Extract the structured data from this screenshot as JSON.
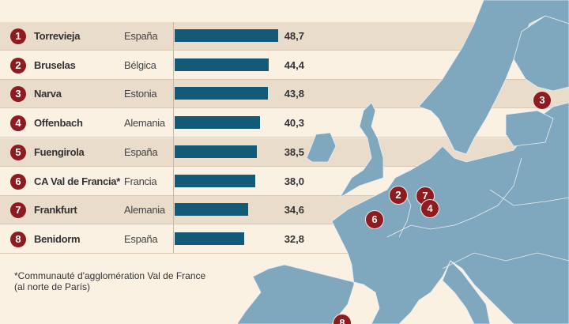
{
  "chart_data": {
    "type": "bar",
    "orientation": "horizontal",
    "categories": [
      "Torrevieja",
      "Bruselas",
      "Narva",
      "Offenbach",
      "Fuengirola",
      "CA Val de Francia*",
      "Frankfurt",
      "Benidorm"
    ],
    "ranks": [
      "1",
      "2",
      "3",
      "4",
      "5",
      "6",
      "7",
      "8"
    ],
    "countries": [
      "España",
      "Bélgica",
      "Estonia",
      "Alemania",
      "España",
      "Francia",
      "Alemania",
      "España"
    ],
    "values": [
      48.7,
      44.4,
      43.8,
      40.3,
      38.5,
      38.0,
      34.6,
      32.8
    ],
    "value_labels": [
      "48,7",
      "44,4",
      "43,8",
      "40,3",
      "38,5",
      "38,0",
      "34,6",
      "32,8"
    ],
    "bar_color": "#135a78",
    "badge_color": "#8e1b1f"
  },
  "footnote": {
    "line1": "*Communauté d'agglomération Val de France",
    "line2": "(al norte de París)"
  },
  "map": {
    "land_color": "#7fa8be",
    "markers": [
      "3",
      "2",
      "7",
      "4",
      "6",
      "8"
    ]
  }
}
